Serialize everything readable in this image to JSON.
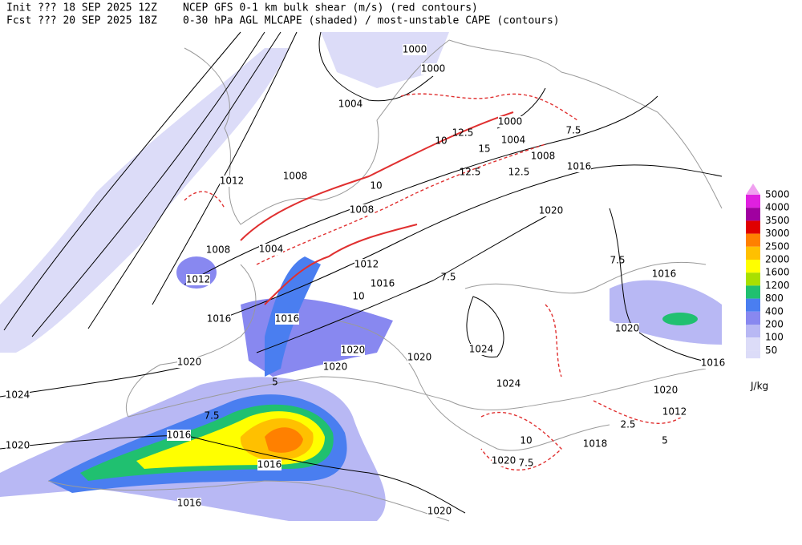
{
  "header": {
    "init": "Init  ??? 18 SEP 2025 12Z",
    "model": "NCEP GFS 0-1 km bulk shear (m/s) (red contours)",
    "fcst": "Fcst ??? 20 SEP 2025 18Z",
    "fields": "0-30 hPa AGL MLCAPE (shaded) / most-unstable CAPE (contours)"
  },
  "isobar_labels": [
    "1000",
    "1000",
    "1004",
    "1000",
    "1004",
    "1008",
    "1016",
    "1008",
    "1012",
    "1020",
    "1008",
    "1008",
    "1004",
    "1012",
    "1012",
    "1016",
    "1016",
    "1016",
    "1016",
    "1020",
    "1020",
    "1020",
    "1020",
    "1024",
    "1020",
    "1024",
    "1024",
    "1020",
    "1016",
    "1012",
    "1020",
    "1016",
    "1016",
    "1020",
    "1018",
    "1016",
    "1020"
  ],
  "shear_labels": [
    "7.5",
    "12.5",
    "15",
    "12.5",
    "12.5",
    "10",
    "10",
    "7.5",
    "10",
    "7.5",
    "5",
    "7.5",
    "2.5",
    "5",
    "7.5",
    "10"
  ],
  "legend": {
    "items": [
      {
        "label": "5000",
        "color": "#f0a0f0"
      },
      {
        "label": "4000",
        "color": "#e020e0"
      },
      {
        "label": "3500",
        "color": "#a000a0"
      },
      {
        "label": "3000",
        "color": "#e00000"
      },
      {
        "label": "2500",
        "color": "#ff8000"
      },
      {
        "label": "2000",
        "color": "#ffc000"
      },
      {
        "label": "1600",
        "color": "#ffff00"
      },
      {
        "label": "1200",
        "color": "#a8e000"
      },
      {
        "label": "800",
        "color": "#20c070"
      },
      {
        "label": "400",
        "color": "#4a7ef0"
      },
      {
        "label": "200",
        "color": "#8888f0"
      },
      {
        "label": "100",
        "color": "#b8b8f4"
      },
      {
        "label": "50",
        "color": "#dcdcf8"
      }
    ],
    "unit": "J/kg"
  }
}
